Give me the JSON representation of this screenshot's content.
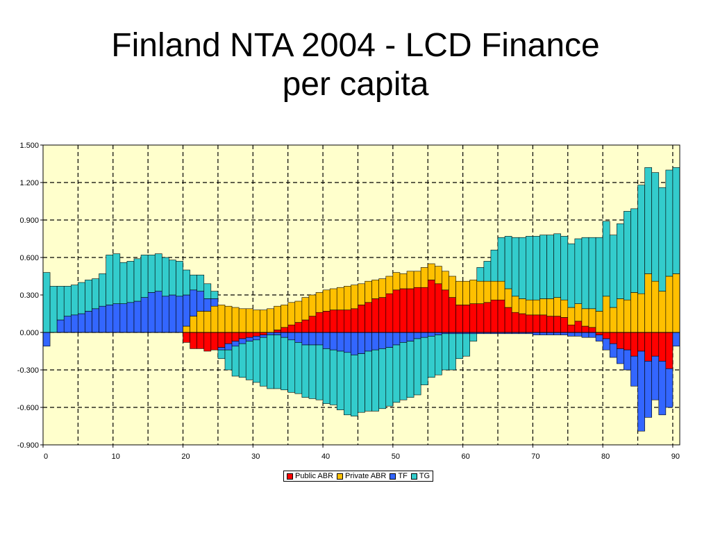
{
  "title_line1": "Finland NTA 2004 - LCD Finance",
  "title_line2": "per capita",
  "chart_data": {
    "type": "bar",
    "stacked": true,
    "x": [
      0,
      1,
      2,
      3,
      4,
      5,
      6,
      7,
      8,
      9,
      10,
      11,
      12,
      13,
      14,
      15,
      16,
      17,
      18,
      19,
      20,
      21,
      22,
      23,
      24,
      25,
      26,
      27,
      28,
      29,
      30,
      31,
      32,
      33,
      34,
      35,
      36,
      37,
      38,
      39,
      40,
      41,
      42,
      43,
      44,
      45,
      46,
      47,
      48,
      49,
      50,
      51,
      52,
      53,
      54,
      55,
      56,
      57,
      58,
      59,
      60,
      61,
      62,
      63,
      64,
      65,
      66,
      67,
      68,
      69,
      70,
      71,
      72,
      73,
      74,
      75,
      76,
      77,
      78,
      79,
      80,
      81,
      82,
      83,
      84,
      85,
      86,
      87,
      88,
      89,
      90
    ],
    "xticks": [
      "0",
      "10",
      "20",
      "30",
      "40",
      "50",
      "60",
      "70",
      "80",
      "90"
    ],
    "xtick_values": [
      0,
      10,
      20,
      30,
      40,
      50,
      60,
      70,
      80,
      90
    ],
    "yticks": [
      "1.500",
      "1.200",
      "0.900",
      "0.600",
      "0.300",
      "0.000",
      "-0.300",
      "-0.600",
      "-0.900"
    ],
    "ytick_values": [
      1.5,
      1.2,
      0.9,
      0.6,
      0.3,
      0,
      -0.3,
      -0.6,
      -0.9
    ],
    "ylim": [
      -0.9,
      1.5
    ],
    "xlim": [
      0,
      91
    ],
    "grid": true,
    "legend_position": "bottom",
    "background": "#ffffcc",
    "series": [
      {
        "name": "Public ABR",
        "color": "#ff0000",
        "values": [
          0,
          0,
          0,
          0,
          0,
          0,
          0,
          0,
          0,
          0,
          0,
          0,
          0,
          0,
          0,
          0,
          0,
          0,
          0,
          0,
          -0.08,
          -0.13,
          -0.13,
          -0.15,
          -0.14,
          -0.12,
          -0.09,
          -0.07,
          -0.05,
          -0.04,
          -0.03,
          -0.02,
          0,
          0.02,
          0.04,
          0.06,
          0.08,
          0.1,
          0.13,
          0.16,
          0.17,
          0.18,
          0.18,
          0.18,
          0.19,
          0.22,
          0.24,
          0.27,
          0.28,
          0.31,
          0.34,
          0.35,
          0.35,
          0.36,
          0.36,
          0.42,
          0.39,
          0.34,
          0.28,
          0.22,
          0.22,
          0.23,
          0.23,
          0.24,
          0.26,
          0.26,
          0.2,
          0.16,
          0.15,
          0.14,
          0.14,
          0.14,
          0.13,
          0.13,
          0.12,
          0.06,
          0.09,
          0.05,
          0.04,
          -0.02,
          -0.05,
          -0.09,
          -0.13,
          -0.14,
          -0.19,
          -0.15,
          -0.23,
          -0.19,
          -0.23,
          -0.29,
          0
        ]
      },
      {
        "name": "Private ABR",
        "color": "#ffc000",
        "values": [
          0,
          0,
          0,
          0,
          0,
          0,
          0,
          0,
          0,
          0,
          0,
          0,
          0,
          0,
          0,
          0,
          0,
          0,
          0,
          0,
          0.05,
          0.13,
          0.17,
          0.17,
          0.21,
          0.22,
          0.21,
          0.2,
          0.19,
          0.19,
          0.18,
          0.18,
          0.19,
          0.19,
          0.18,
          0.18,
          0.17,
          0.18,
          0.17,
          0.16,
          0.17,
          0.17,
          0.18,
          0.19,
          0.19,
          0.17,
          0.17,
          0.15,
          0.15,
          0.14,
          0.14,
          0.12,
          0.14,
          0.13,
          0.16,
          0.13,
          0.14,
          0.15,
          0.17,
          0.19,
          0.19,
          0.19,
          0.18,
          0.17,
          0.15,
          0.15,
          0.15,
          0.13,
          0.12,
          0.12,
          0.12,
          0.13,
          0.14,
          0.15,
          0.14,
          0.14,
          0.14,
          0.14,
          0.15,
          0.17,
          0.29,
          0.2,
          0.27,
          0.26,
          0.32,
          0.31,
          0.47,
          0.41,
          0.33,
          0.45,
          0.47
        ]
      },
      {
        "name": "TF",
        "color": "#3366ff",
        "values": [
          -0.11,
          0,
          0.1,
          0.13,
          0.14,
          0.15,
          0.17,
          0.19,
          0.21,
          0.22,
          0.23,
          0.23,
          0.24,
          0.25,
          0.28,
          0.32,
          0.33,
          0.29,
          0.3,
          0.29,
          0.25,
          0.21,
          0.16,
          0.1,
          0.06,
          -0.02,
          -0.05,
          -0.04,
          -0.04,
          -0.03,
          -0.03,
          -0.02,
          -0.02,
          -0.02,
          -0.04,
          -0.06,
          -0.08,
          -0.1,
          -0.1,
          -0.1,
          -0.13,
          -0.14,
          -0.15,
          -0.16,
          -0.18,
          -0.17,
          -0.15,
          -0.14,
          -0.13,
          -0.12,
          -0.1,
          -0.08,
          -0.07,
          -0.05,
          -0.04,
          -0.03,
          -0.02,
          -0.01,
          -0.01,
          -0.01,
          -0.01,
          -0.01,
          -0.01,
          -0.01,
          -0.01,
          -0.01,
          -0.01,
          -0.01,
          -0.01,
          -0.01,
          -0.02,
          -0.02,
          -0.02,
          -0.02,
          -0.02,
          -0.03,
          -0.03,
          -0.04,
          -0.04,
          -0.05,
          -0.09,
          -0.11,
          -0.12,
          -0.16,
          -0.24,
          -0.64,
          -0.45,
          -0.35,
          -0.43,
          -0.31,
          -0.11
        ]
      },
      {
        "name": "TG",
        "color": "#33cccc",
        "values": [
          0.48,
          0.37,
          0.27,
          0.24,
          0.24,
          0.25,
          0.25,
          0.24,
          0.26,
          0.4,
          0.4,
          0.33,
          0.33,
          0.34,
          0.34,
          0.3,
          0.3,
          0.31,
          0.28,
          0.28,
          0.2,
          0.12,
          0.13,
          0.12,
          0.06,
          -0.07,
          -0.16,
          -0.24,
          -0.27,
          -0.31,
          -0.34,
          -0.39,
          -0.43,
          -0.43,
          -0.42,
          -0.42,
          -0.41,
          -0.42,
          -0.43,
          -0.44,
          -0.44,
          -0.44,
          -0.47,
          -0.5,
          -0.49,
          -0.47,
          -0.48,
          -0.49,
          -0.48,
          -0.47,
          -0.46,
          -0.46,
          -0.45,
          -0.45,
          -0.38,
          -0.33,
          -0.32,
          -0.29,
          -0.29,
          -0.2,
          -0.18,
          -0.06,
          0.11,
          0.16,
          0.25,
          0.35,
          0.42,
          0.47,
          0.49,
          0.51,
          0.51,
          0.51,
          0.51,
          0.51,
          0.51,
          0.51,
          0.52,
          0.57,
          0.57,
          0.59,
          0.6,
          0.58,
          0.6,
          0.71,
          0.67,
          0.87,
          0.85,
          0.87,
          0.83,
          0.85,
          0.85
        ]
      }
    ]
  },
  "legend": [
    "Public ABR",
    "Private ABR",
    "TF",
    "TG"
  ],
  "legend_colors": [
    "#ff0000",
    "#ffc000",
    "#3366ff",
    "#33cccc"
  ]
}
